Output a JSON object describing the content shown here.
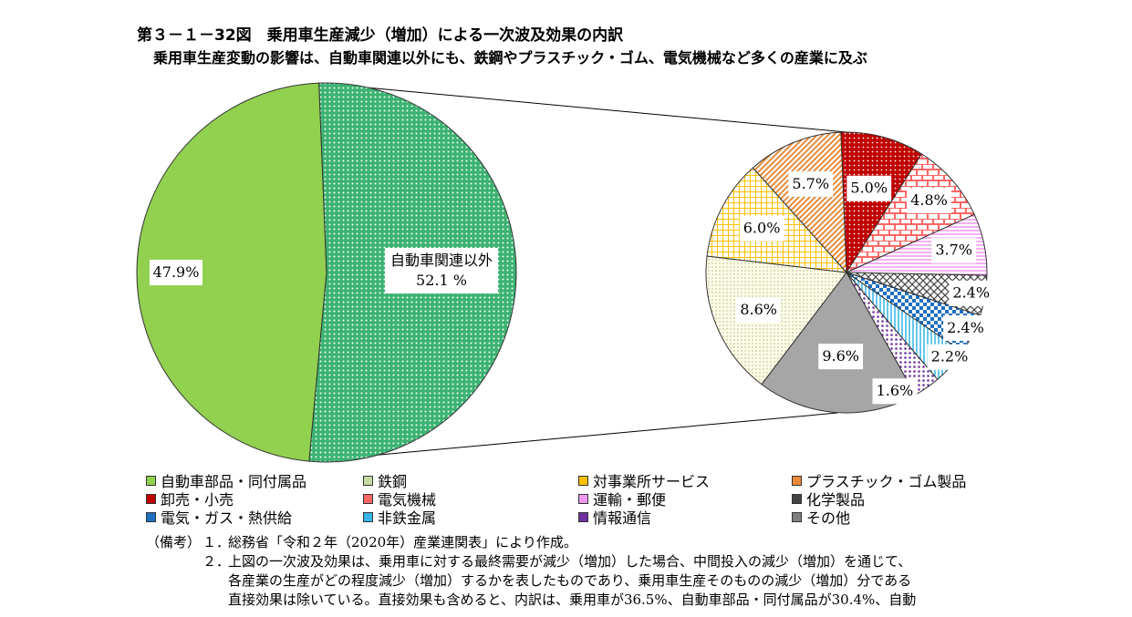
{
  "title": "第３－１－32図　乗用車生産減少（増加）による一次波及効果の内訳",
  "subtitle": "乗用車生産変動の影響は、自動車関連以外にも、鉄鋼やプラスチック・ゴム、電気機械など多くの産業に及ぶ",
  "chart_data": [
    {
      "type": "pie",
      "slices": [
        {
          "name": "自動車部品・同付属品",
          "value": 47.9,
          "label": "47.9%",
          "color": "#92d050"
        },
        {
          "name": "自動車関連以外",
          "value": 52.1,
          "label": "自動車関連以外\n52.1 %",
          "color": "#3cb371"
        }
      ]
    },
    {
      "type": "pie",
      "slices": [
        {
          "name": "卸売・小売",
          "value": 5.0,
          "label": "5.0%",
          "color": "#c00000"
        },
        {
          "name": "電気機械",
          "value": 4.8,
          "label": "4.8%",
          "color": "#ff6666"
        },
        {
          "name": "運輸・郵便",
          "value": 3.7,
          "label": "3.7%",
          "color": "#ee99ee"
        },
        {
          "name": "化学製品",
          "value": 2.4,
          "label": "2.4%",
          "color": "#444444"
        },
        {
          "name": "電気・ガス・熱供給",
          "value": 2.4,
          "label": "2.4%",
          "color": "#1f6fc0"
        },
        {
          "name": "非鉄金属",
          "value": 2.2,
          "label": "2.2%",
          "color": "#33b5e5"
        },
        {
          "name": "情報通信",
          "value": 1.6,
          "label": "1.6%",
          "color": "#7030a0"
        },
        {
          "name": "その他",
          "value": 9.6,
          "label": "9.6%",
          "color": "#a6a6a6"
        },
        {
          "name": "鉄鋼",
          "value": 8.6,
          "label": "8.6%",
          "color": "#c6d9a0"
        },
        {
          "name": "対事業所サービス",
          "value": 6.0,
          "label": "6.0%",
          "color": "#ffc000"
        },
        {
          "name": "プラスチック・ゴム製品",
          "value": 5.7,
          "label": "5.7%",
          "color": "#e98a3a"
        }
      ]
    }
  ],
  "legend": [
    {
      "label": "自動車部品・同付属品",
      "color": "#92d050"
    },
    {
      "label": "鉄鋼",
      "color": "#c6d9a0"
    },
    {
      "label": "対事業所サービス",
      "color": "#ffc000"
    },
    {
      "label": "プラスチック・ゴム製品",
      "color": "#e98a3a"
    },
    {
      "label": "卸売・小売",
      "color": "#c00000"
    },
    {
      "label": "電気機械",
      "color": "#ff6666"
    },
    {
      "label": "運輸・郵便",
      "color": "#ee99ee"
    },
    {
      "label": "化学製品",
      "color": "#444444"
    },
    {
      "label": "電気・ガス・熱供給",
      "color": "#1f6fc0"
    },
    {
      "label": "非鉄金属",
      "color": "#33b5e5"
    },
    {
      "label": "情報通信",
      "color": "#7030a0"
    },
    {
      "label": "その他",
      "color": "#808080"
    }
  ],
  "notes": {
    "label": "（備考）",
    "items": [
      {
        "num": "１．",
        "text": "総務省「令和２年（2020年）産業連関表」により作成。"
      },
      {
        "num": "２．",
        "text": "上図の一次波及効果は、乗用車に対する最終需要が減少（増加）した場合、中間投入の減少（増加）を通じて、"
      }
    ],
    "continuation": [
      "各産業の生産がどの程度減少（増加）するかを表したものであり、乗用車生産そのものの減少（増加）分である",
      "直接効果は除いている。直接効果も含めると、内訳は、乗用車が36.5%、自動車部品・同付属品が30.4%、自動"
    ]
  }
}
